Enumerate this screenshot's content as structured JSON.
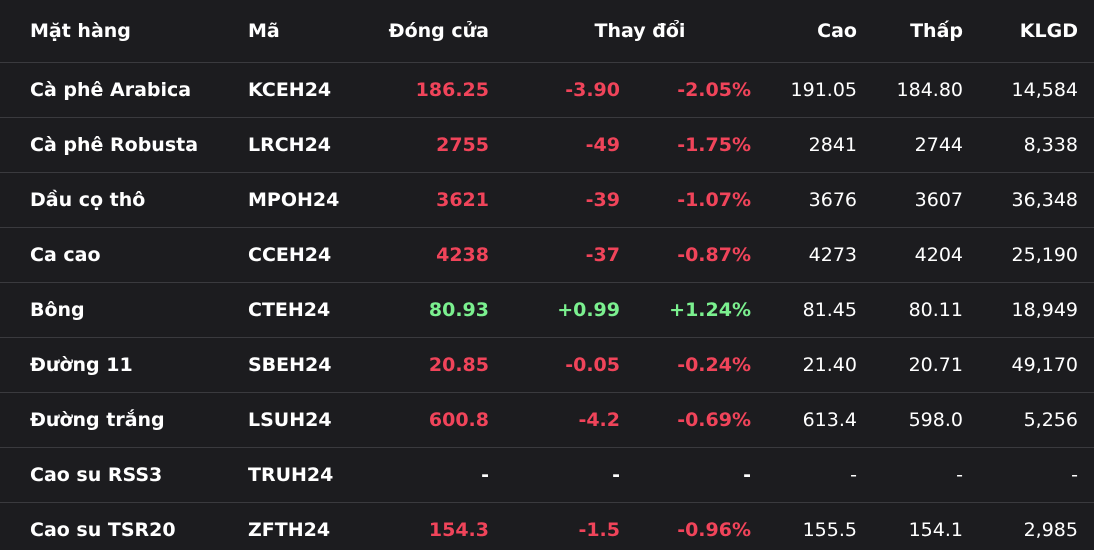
{
  "header": {
    "name": "Mặt hàng",
    "code": "Mã",
    "close": "Đóng cửa",
    "change": "Thay đổi",
    "high": "Cao",
    "low": "Thấp",
    "volume": "KLGD"
  },
  "colors": {
    "background": "#1c1c1f",
    "down": "#f0445a",
    "up": "#7bf08f",
    "divider": "#3a3a3e"
  },
  "rows": [
    {
      "name": "Cà phê Arabica",
      "code": "KCEH24",
      "close": "186.25",
      "change": "-3.90",
      "pct": "-2.05%",
      "high": "191.05",
      "low": "184.80",
      "volume": "14,584",
      "trend": "down"
    },
    {
      "name": "Cà phê Robusta",
      "code": "LRCH24",
      "close": "2755",
      "change": "-49",
      "pct": "-1.75%",
      "high": "2841",
      "low": "2744",
      "volume": "8,338",
      "trend": "down"
    },
    {
      "name": "Dầu cọ thô",
      "code": "MPOH24",
      "close": "3621",
      "change": "-39",
      "pct": "-1.07%",
      "high": "3676",
      "low": "3607",
      "volume": "36,348",
      "trend": "down"
    },
    {
      "name": "Ca cao",
      "code": "CCEH24",
      "close": "4238",
      "change": "-37",
      "pct": "-0.87%",
      "high": "4273",
      "low": "4204",
      "volume": "25,190",
      "trend": "down"
    },
    {
      "name": "Bông",
      "code": "CTEH24",
      "close": "80.93",
      "change": "+0.99",
      "pct": "+1.24%",
      "high": "81.45",
      "low": "80.11",
      "volume": "18,949",
      "trend": "up"
    },
    {
      "name": "Đường 11",
      "code": "SBEH24",
      "close": "20.85",
      "change": "-0.05",
      "pct": "-0.24%",
      "high": "21.40",
      "low": "20.71",
      "volume": "49,170",
      "trend": "down"
    },
    {
      "name": "Đường trắng",
      "code": "LSUH24",
      "close": "600.8",
      "change": "-4.2",
      "pct": "-0.69%",
      "high": "613.4",
      "low": "598.0",
      "volume": "5,256",
      "trend": "down"
    },
    {
      "name": "Cao su RSS3",
      "code": "TRUH24",
      "close": "-",
      "change": "-",
      "pct": "-",
      "high": "-",
      "low": "-",
      "volume": "-",
      "trend": "flat"
    },
    {
      "name": "Cao su TSR20",
      "code": "ZFTH24",
      "close": "154.3",
      "change": "-1.5",
      "pct": "-0.96%",
      "high": "155.5",
      "low": "154.1",
      "volume": "2,985",
      "trend": "down"
    }
  ]
}
